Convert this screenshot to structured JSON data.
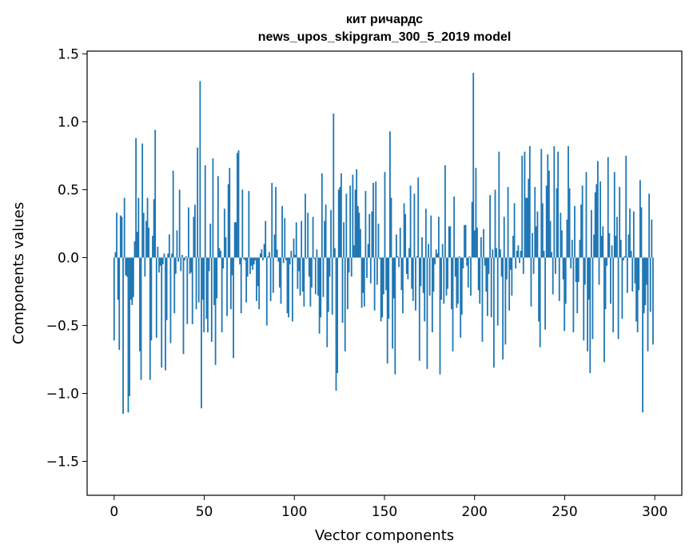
{
  "chart_data": {
    "type": "bar",
    "title_line1": "кит ричардс",
    "title_line2": "news_upos_skipgram_300_5_2019 model",
    "xlabel": "Vector components",
    "ylabel": "Components values",
    "xlim": [
      -15,
      315
    ],
    "ylim": [
      -1.75,
      1.52
    ],
    "xticks": [
      0,
      50,
      100,
      150,
      200,
      250,
      300
    ],
    "xtick_labels": [
      "0",
      "50",
      "100",
      "150",
      "200",
      "250",
      "300"
    ],
    "yticks": [
      1.5,
      1.0,
      0.5,
      0.0,
      -0.5,
      -1.0,
      -1.5
    ],
    "ytick_labels": [
      "1.5",
      "1.0",
      "0.5",
      "0.0",
      "−0.5",
      "−1.0",
      "−1.5"
    ],
    "grid": false,
    "bar_color": "#1f77b4",
    "values": [
      -0.61,
      0.04,
      0.33,
      -0.31,
      -0.68,
      0.31,
      0.3,
      -1.15,
      0.44,
      -0.13,
      -0.14,
      -1.14,
      -1.02,
      -0.31,
      -0.35,
      -0.29,
      0.12,
      0.88,
      0.19,
      0.44,
      -0.69,
      -0.9,
      0.84,
      0.33,
      -0.14,
      0.27,
      0.44,
      0.22,
      -0.9,
      -0.61,
      0.16,
      0.43,
      0.94,
      -0.59,
      0.08,
      -0.11,
      -0.06,
      -0.81,
      -0.05,
      0.03,
      -0.83,
      -0.46,
      0.03,
      0.17,
      -0.63,
      0.03,
      0.64,
      -0.41,
      -0.12,
      0.2,
      -0.03,
      0.5,
      -0.1,
      0.02,
      -0.71,
      -0.02,
      0.01,
      -0.49,
      0.37,
      -0.12,
      -0.11,
      -0.49,
      0.3,
      0.39,
      -0.38,
      0.81,
      -0.33,
      1.3,
      -1.11,
      -0.31,
      -0.55,
      0.68,
      -0.45,
      -0.55,
      -0.1,
      0.25,
      -0.62,
      0.73,
      -0.35,
      -0.79,
      -0.3,
      0.6,
      0.07,
      0.05,
      -0.55,
      -0.08,
      0.36,
      0.15,
      -0.43,
      0.54,
      0.66,
      -0.38,
      -0.13,
      -0.74,
      0.26,
      0.26,
      0.77,
      0.79,
      -0.05,
      -0.41,
      0.5,
      -0.01,
      -0.02,
      -0.33,
      -0.14,
      0.49,
      -0.12,
      -0.06,
      -0.09,
      -0.05,
      -0.02,
      -0.32,
      -0.21,
      -0.38,
      0.03,
      0.06,
      -0.02,
      0.1,
      0.27,
      -0.5,
      0.01,
      0.04,
      -0.32,
      0.55,
      -0.26,
      0.17,
      0.52,
      0.06,
      -0.03,
      -0.22,
      -0.34,
      0.38,
      -0.04,
      0.29,
      -0.02,
      -0.41,
      -0.44,
      -0.05,
      0.05,
      -0.47,
      0.14,
      0.02,
      0.26,
      -0.23,
      -0.1,
      -0.28,
      0.27,
      -0.25,
      -0.36,
      0.47,
      -0.01,
      0.33,
      -0.14,
      -0.36,
      -0.22,
      0.3,
      -0.01,
      -0.27,
      0.06,
      -0.28,
      -0.56,
      -0.44,
      0.62,
      -0.29,
      0.27,
      0.39,
      -0.66,
      -0.4,
      -0.14,
      0.35,
      -0.42,
      1.06,
      0.07,
      -0.98,
      -0.85,
      0.5,
      0.52,
      0.62,
      -0.48,
      0.26,
      -0.69,
      0.47,
      -0.38,
      -0.11,
      0.53,
      -0.14,
      0.61,
      0.09,
      0.5,
      0.65,
      0.38,
      0.33,
      0.21,
      -0.37,
      -0.26,
      -0.36,
      0.49,
      -0.15,
      0.1,
      0.32,
      -0.19,
      0.34,
      0.55,
      -0.39,
      0.56,
      -0.2,
      0.25,
      -0.01,
      -0.47,
      -0.44,
      -0.27,
      0.63,
      -0.24,
      -0.78,
      -0.45,
      0.93,
      0.44,
      -0.67,
      -0.3,
      -0.86,
      0.17,
      0.01,
      -0.07,
      0.22,
      -0.24,
      -0.41,
      0.4,
      0.32,
      -0.12,
      -0.16,
      0.07,
      0.53,
      -0.23,
      -0.32,
      0.47,
      -0.39,
      0.01,
      0.59,
      -0.76,
      -0.21,
      0.15,
      -0.26,
      -0.47,
      0.36,
      -0.82,
      0.1,
      -0.28,
      0.31,
      -0.55,
      -0.25,
      -0.05,
      0.06,
      0.03,
      0.3,
      -0.86,
      -0.31,
      0.1,
      -0.34,
      0.68,
      -0.28,
      -0.23,
      0.23,
      0.23,
      -0.38,
      -0.69,
      0.45,
      -0.14,
      -0.37,
      -0.34,
      0.01,
      -0.59,
      -0.42,
      -0.08,
      0.24,
      0.24,
      -0.06,
      -0.22,
      0.01,
      -0.28,
      0.41,
      1.36,
      0.2,
      0.66,
      0.22,
      -0.24,
      -0.34,
      0.15,
      -0.62,
      0.21,
      -0.06,
      -0.25,
      -0.43,
      -0.12,
      0.46,
      -0.44,
      0.06,
      -0.81,
      0.5,
      0.07,
      -0.5,
      0.78,
      0.06,
      -0.14,
      -0.75,
      0.3,
      -0.64,
      -0.16,
      0.52,
      -0.39,
      -0.09,
      -0.28,
      0.16,
      0.4,
      -0.08,
      0.05,
      0.09,
      -0.04,
      0.05,
      0.75,
      -0.12,
      0.78,
      0.44,
      0.44,
      0.58,
      0.82,
      -0.36,
      0.18,
      -0.12,
      0.52,
      0.23,
      0.34,
      -0.47,
      -0.66,
      0.8,
      0.4,
      0.05,
      -0.53,
      0.53,
      0.76,
      0.64,
      0.27,
      0.04,
      -0.27,
      0.82,
      -0.12,
      0.51,
      0.78,
      -0.32,
      0.33,
      0.2,
      -0.16,
      -0.54,
      -0.34,
      0.28,
      0.82,
      0.51,
      -0.08,
      0.13,
      -0.55,
      0.38,
      -0.18,
      -0.41,
      -0.18,
      0.13,
      0.39,
      0.53,
      -0.61,
      -0.2,
      0.63,
      -0.69,
      -0.31,
      -0.85,
      0.35,
      -0.6,
      0.17,
      0.48,
      0.54,
      0.71,
      -0.2,
      0.56,
      0.16,
      0.23,
      -0.77,
      -0.38,
      -0.06,
      0.74,
      0.18,
      -0.34,
      0.09,
      -0.55,
      0.63,
      0.16,
      0.3,
      -0.6,
      0.52,
      0.13,
      -0.45,
      -0.02,
      0.01,
      0.75,
      -0.26,
      0.17,
      0.36,
      0.05,
      -0.25,
      0.34,
      -0.19,
      -0.47,
      -0.55,
      -0.24,
      0.57,
      0.37,
      -1.14,
      -0.41,
      -0.35,
      -0.2,
      -0.69,
      0.47,
      -0.4,
      0.28,
      -0.64
    ]
  }
}
